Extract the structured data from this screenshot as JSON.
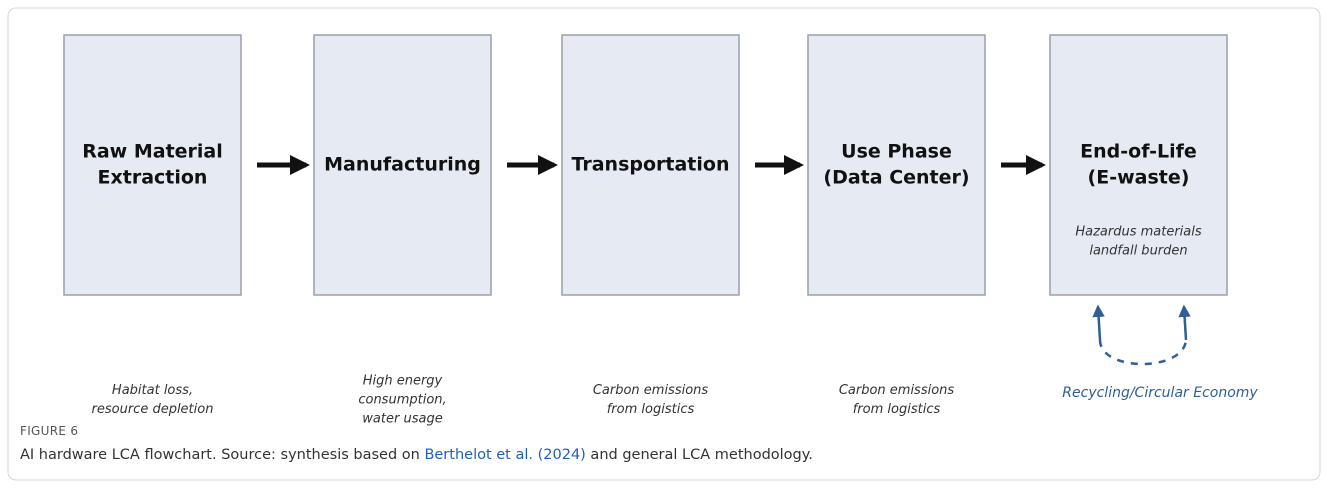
{
  "figure": {
    "stages": [
      {
        "title": [
          "Raw Material",
          "Extraction"
        ],
        "note": [
          "Habitat loss,",
          "resource depletion"
        ]
      },
      {
        "title": [
          "Manufacturing"
        ],
        "note": [
          "High energy",
          "consumption,",
          "water usage"
        ]
      },
      {
        "title": [
          "Transportation"
        ],
        "note": [
          "Carbon emissions",
          "from logistics"
        ]
      },
      {
        "title": [
          "Use Phase",
          "(Data Center)"
        ],
        "note": [
          "Carbon emissions",
          "from logistics"
        ]
      },
      {
        "title": [
          "End-of-Life",
          "(E-waste)"
        ],
        "inner_note": [
          "Hazardus materials",
          "landfall burden"
        ]
      }
    ],
    "loop_label": "Recycling/Circular Economy",
    "label": "FIGURE 6",
    "caption": [
      "AI hardware LCA flowchart. Source: synthesis based on ",
      "Berthelot et al. (2024)",
      " and general LCA methodology."
    ]
  }
}
